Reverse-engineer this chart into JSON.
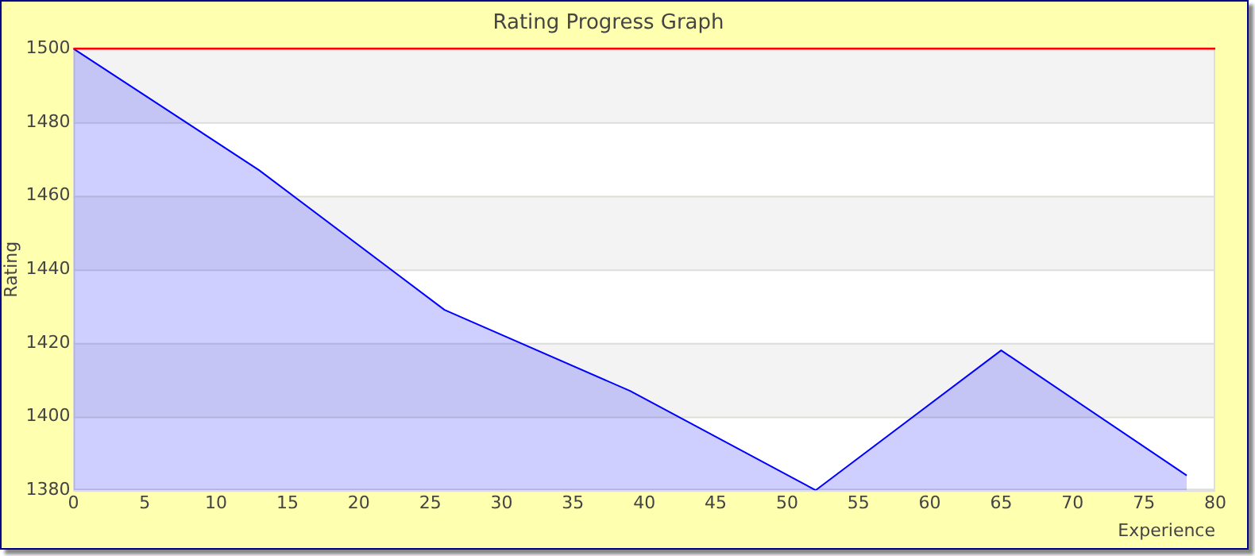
{
  "chart_data": {
    "type": "area",
    "title": "Rating Progress Graph",
    "xlabel": "Experience",
    "ylabel": "Rating",
    "x": [
      0,
      13,
      26,
      39,
      52,
      65,
      78
    ],
    "series": [
      {
        "color": "#0000ff",
        "values": [
          1500,
          1467,
          1429,
          1407,
          1380,
          1418,
          1384
        ]
      }
    ],
    "xlim": [
      0,
      80
    ],
    "xticks": [
      0,
      5,
      10,
      15,
      20,
      25,
      30,
      35,
      40,
      45,
      50,
      55,
      60,
      65,
      70,
      75,
      80
    ],
    "ylim": [
      1380,
      1500
    ],
    "yticks": [
      1380,
      1400,
      1420,
      1440,
      1460,
      1480,
      1500
    ],
    "ref_lines": [
      {
        "axis": "y",
        "value": 1500,
        "color": "#ff0000"
      }
    ],
    "grid": "y",
    "legend": false,
    "marker": "none",
    "line_style": "solid"
  }
}
